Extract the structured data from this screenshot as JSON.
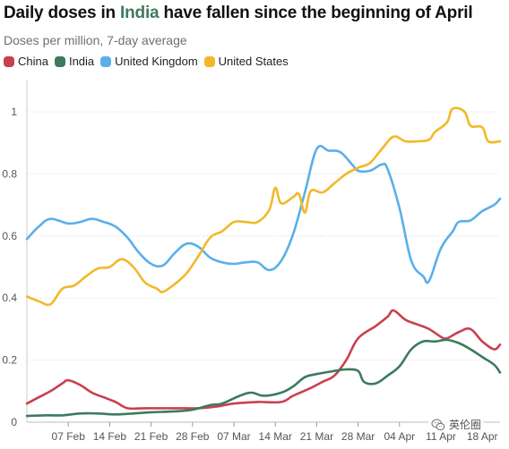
{
  "header": {
    "title_before": "Daily doses in ",
    "title_highlight": "India",
    "title_after": " have fallen since the beginning of April",
    "subtitle": "Doses per million, 7-day average"
  },
  "colors": {
    "china": "#c8404f",
    "india": "#3d7a5e",
    "uk": "#5aafea",
    "us": "#f2b828",
    "gridline": "#d9d9d9",
    "highlight": "#3d7a5e"
  },
  "watermark": {
    "text": "英伦圈",
    "icon": "wechat-icon"
  },
  "chart_data": {
    "type": "line",
    "title": "Daily doses in India have fallen since the beginning of April",
    "subtitle": "Doses per million, 7-day average",
    "xlabel": "",
    "ylabel": "",
    "x_start": "2021-01-31",
    "x_end": "2021-04-21",
    "x_ticks": [
      "07 Feb",
      "14 Feb",
      "21 Feb",
      "28 Feb",
      "07 Mar",
      "14 Mar",
      "21 Mar",
      "28 Mar",
      "04 Apr",
      "11 Apr",
      "18 Apr"
    ],
    "x_tick_dates": [
      "2021-02-07",
      "2021-02-14",
      "2021-02-21",
      "2021-02-28",
      "2021-03-07",
      "2021-03-14",
      "2021-03-21",
      "2021-03-28",
      "2021-04-04",
      "2021-04-11",
      "2021-04-18"
    ],
    "ylim": [
      0,
      1.0
    ],
    "y_ticks": [
      0,
      0.2,
      0.4,
      0.6,
      0.8,
      1
    ],
    "y_tick_labels": [
      "0",
      "0.2",
      "0.4",
      "0.6",
      "0.8",
      "1"
    ],
    "grid": "horizontal",
    "legend": "top-left",
    "series": [
      {
        "name": "China",
        "color_key": "china",
        "points": [
          [
            "2021-01-31",
            0.06
          ],
          [
            "2021-02-02",
            0.08
          ],
          [
            "2021-02-04",
            0.1
          ],
          [
            "2021-02-06",
            0.125
          ],
          [
            "2021-02-07",
            0.135
          ],
          [
            "2021-02-09",
            0.12
          ],
          [
            "2021-02-11",
            0.095
          ],
          [
            "2021-02-13",
            0.08
          ],
          [
            "2021-02-15",
            0.065
          ],
          [
            "2021-02-17",
            0.045
          ],
          [
            "2021-02-20",
            0.045
          ],
          [
            "2021-02-25",
            0.045
          ],
          [
            "2021-03-01",
            0.045
          ],
          [
            "2021-03-04",
            0.05
          ],
          [
            "2021-03-07",
            0.06
          ],
          [
            "2021-03-11",
            0.065
          ],
          [
            "2021-03-15",
            0.065
          ],
          [
            "2021-03-17",
            0.085
          ],
          [
            "2021-03-20",
            0.11
          ],
          [
            "2021-03-22",
            0.13
          ],
          [
            "2021-03-24",
            0.15
          ],
          [
            "2021-03-26",
            0.2
          ],
          [
            "2021-03-28",
            0.27
          ],
          [
            "2021-03-31",
            0.31
          ],
          [
            "2021-04-02",
            0.34
          ],
          [
            "2021-04-03",
            0.36
          ],
          [
            "2021-04-05",
            0.33
          ],
          [
            "2021-04-07",
            0.315
          ],
          [
            "2021-04-09",
            0.3
          ],
          [
            "2021-04-11",
            0.275
          ],
          [
            "2021-04-12",
            0.27
          ],
          [
            "2021-04-14",
            0.29
          ],
          [
            "2021-04-16",
            0.3
          ],
          [
            "2021-04-18",
            0.26
          ],
          [
            "2021-04-20",
            0.235
          ],
          [
            "2021-04-21",
            0.25
          ]
        ]
      },
      {
        "name": "India",
        "color_key": "india",
        "points": [
          [
            "2021-01-31",
            0.02
          ],
          [
            "2021-02-03",
            0.022
          ],
          [
            "2021-02-06",
            0.022
          ],
          [
            "2021-02-09",
            0.028
          ],
          [
            "2021-02-12",
            0.028
          ],
          [
            "2021-02-15",
            0.025
          ],
          [
            "2021-02-18",
            0.028
          ],
          [
            "2021-02-21",
            0.032
          ],
          [
            "2021-02-25",
            0.035
          ],
          [
            "2021-02-28",
            0.04
          ],
          [
            "2021-03-03",
            0.055
          ],
          [
            "2021-03-05",
            0.06
          ],
          [
            "2021-03-08",
            0.085
          ],
          [
            "2021-03-10",
            0.095
          ],
          [
            "2021-03-12",
            0.085
          ],
          [
            "2021-03-15",
            0.095
          ],
          [
            "2021-03-17",
            0.115
          ],
          [
            "2021-03-19",
            0.145
          ],
          [
            "2021-03-21",
            0.155
          ],
          [
            "2021-03-24",
            0.165
          ],
          [
            "2021-03-26",
            0.17
          ],
          [
            "2021-03-28",
            0.165
          ],
          [
            "2021-03-29",
            0.13
          ],
          [
            "2021-03-31",
            0.125
          ],
          [
            "2021-04-02",
            0.15
          ],
          [
            "2021-04-04",
            0.18
          ],
          [
            "2021-04-06",
            0.235
          ],
          [
            "2021-04-08",
            0.26
          ],
          [
            "2021-04-10",
            0.26
          ],
          [
            "2021-04-12",
            0.265
          ],
          [
            "2021-04-14",
            0.255
          ],
          [
            "2021-04-16",
            0.235
          ],
          [
            "2021-04-18",
            0.21
          ],
          [
            "2021-04-20",
            0.185
          ],
          [
            "2021-04-21",
            0.16
          ]
        ]
      },
      {
        "name": "United Kingdom",
        "color_key": "uk",
        "points": [
          [
            "2021-01-31",
            0.59
          ],
          [
            "2021-02-02",
            0.63
          ],
          [
            "2021-02-04",
            0.655
          ],
          [
            "2021-02-07",
            0.64
          ],
          [
            "2021-02-09",
            0.645
          ],
          [
            "2021-02-11",
            0.655
          ],
          [
            "2021-02-13",
            0.645
          ],
          [
            "2021-02-15",
            0.63
          ],
          [
            "2021-02-17",
            0.595
          ],
          [
            "2021-02-19",
            0.545
          ],
          [
            "2021-02-21",
            0.51
          ],
          [
            "2021-02-23",
            0.505
          ],
          [
            "2021-02-25",
            0.545
          ],
          [
            "2021-02-27",
            0.575
          ],
          [
            "2021-03-01",
            0.565
          ],
          [
            "2021-03-03",
            0.53
          ],
          [
            "2021-03-05",
            0.515
          ],
          [
            "2021-03-07",
            0.51
          ],
          [
            "2021-03-09",
            0.515
          ],
          [
            "2021-03-11",
            0.515
          ],
          [
            "2021-03-13",
            0.49
          ],
          [
            "2021-03-15",
            0.52
          ],
          [
            "2021-03-17",
            0.605
          ],
          [
            "2021-03-19",
            0.74
          ],
          [
            "2021-03-21",
            0.88
          ],
          [
            "2021-03-23",
            0.875
          ],
          [
            "2021-03-25",
            0.87
          ],
          [
            "2021-03-27",
            0.83
          ],
          [
            "2021-03-28",
            0.81
          ],
          [
            "2021-03-30",
            0.81
          ],
          [
            "2021-04-01",
            0.83
          ],
          [
            "2021-04-02",
            0.815
          ],
          [
            "2021-04-04",
            0.69
          ],
          [
            "2021-04-06",
            0.52
          ],
          [
            "2021-04-08",
            0.47
          ],
          [
            "2021-04-09",
            0.455
          ],
          [
            "2021-04-11",
            0.56
          ],
          [
            "2021-04-13",
            0.615
          ],
          [
            "2021-04-14",
            0.645
          ],
          [
            "2021-04-16",
            0.65
          ],
          [
            "2021-04-18",
            0.68
          ],
          [
            "2021-04-20",
            0.7
          ],
          [
            "2021-04-21",
            0.72
          ]
        ]
      },
      {
        "name": "United States",
        "color_key": "us",
        "points": [
          [
            "2021-01-31",
            0.405
          ],
          [
            "2021-02-02",
            0.39
          ],
          [
            "2021-02-04",
            0.38
          ],
          [
            "2021-02-06",
            0.43
          ],
          [
            "2021-02-08",
            0.44
          ],
          [
            "2021-02-10",
            0.47
          ],
          [
            "2021-02-12",
            0.495
          ],
          [
            "2021-02-14",
            0.5
          ],
          [
            "2021-02-16",
            0.525
          ],
          [
            "2021-02-18",
            0.5
          ],
          [
            "2021-02-20",
            0.45
          ],
          [
            "2021-02-22",
            0.43
          ],
          [
            "2021-02-23",
            0.42
          ],
          [
            "2021-02-25",
            0.445
          ],
          [
            "2021-02-27",
            0.48
          ],
          [
            "2021-03-01",
            0.535
          ],
          [
            "2021-03-03",
            0.595
          ],
          [
            "2021-03-05",
            0.615
          ],
          [
            "2021-03-07",
            0.645
          ],
          [
            "2021-03-09",
            0.645
          ],
          [
            "2021-03-11",
            0.645
          ],
          [
            "2021-03-13",
            0.685
          ],
          [
            "2021-03-14",
            0.755
          ],
          [
            "2021-03-15",
            0.705
          ],
          [
            "2021-03-17",
            0.725
          ],
          [
            "2021-03-18",
            0.735
          ],
          [
            "2021-03-19",
            0.675
          ],
          [
            "2021-03-20",
            0.745
          ],
          [
            "2021-03-22",
            0.74
          ],
          [
            "2021-03-24",
            0.77
          ],
          [
            "2021-03-26",
            0.8
          ],
          [
            "2021-03-28",
            0.82
          ],
          [
            "2021-03-30",
            0.835
          ],
          [
            "2021-04-01",
            0.88
          ],
          [
            "2021-04-03",
            0.92
          ],
          [
            "2021-04-05",
            0.905
          ],
          [
            "2021-04-07",
            0.905
          ],
          [
            "2021-04-09",
            0.91
          ],
          [
            "2021-04-10",
            0.935
          ],
          [
            "2021-04-12",
            0.965
          ],
          [
            "2021-04-13",
            1.01
          ],
          [
            "2021-04-15",
            1.0
          ],
          [
            "2021-04-16",
            0.955
          ],
          [
            "2021-04-18",
            0.95
          ],
          [
            "2021-04-19",
            0.905
          ],
          [
            "2021-04-21",
            0.905
          ]
        ]
      }
    ]
  }
}
